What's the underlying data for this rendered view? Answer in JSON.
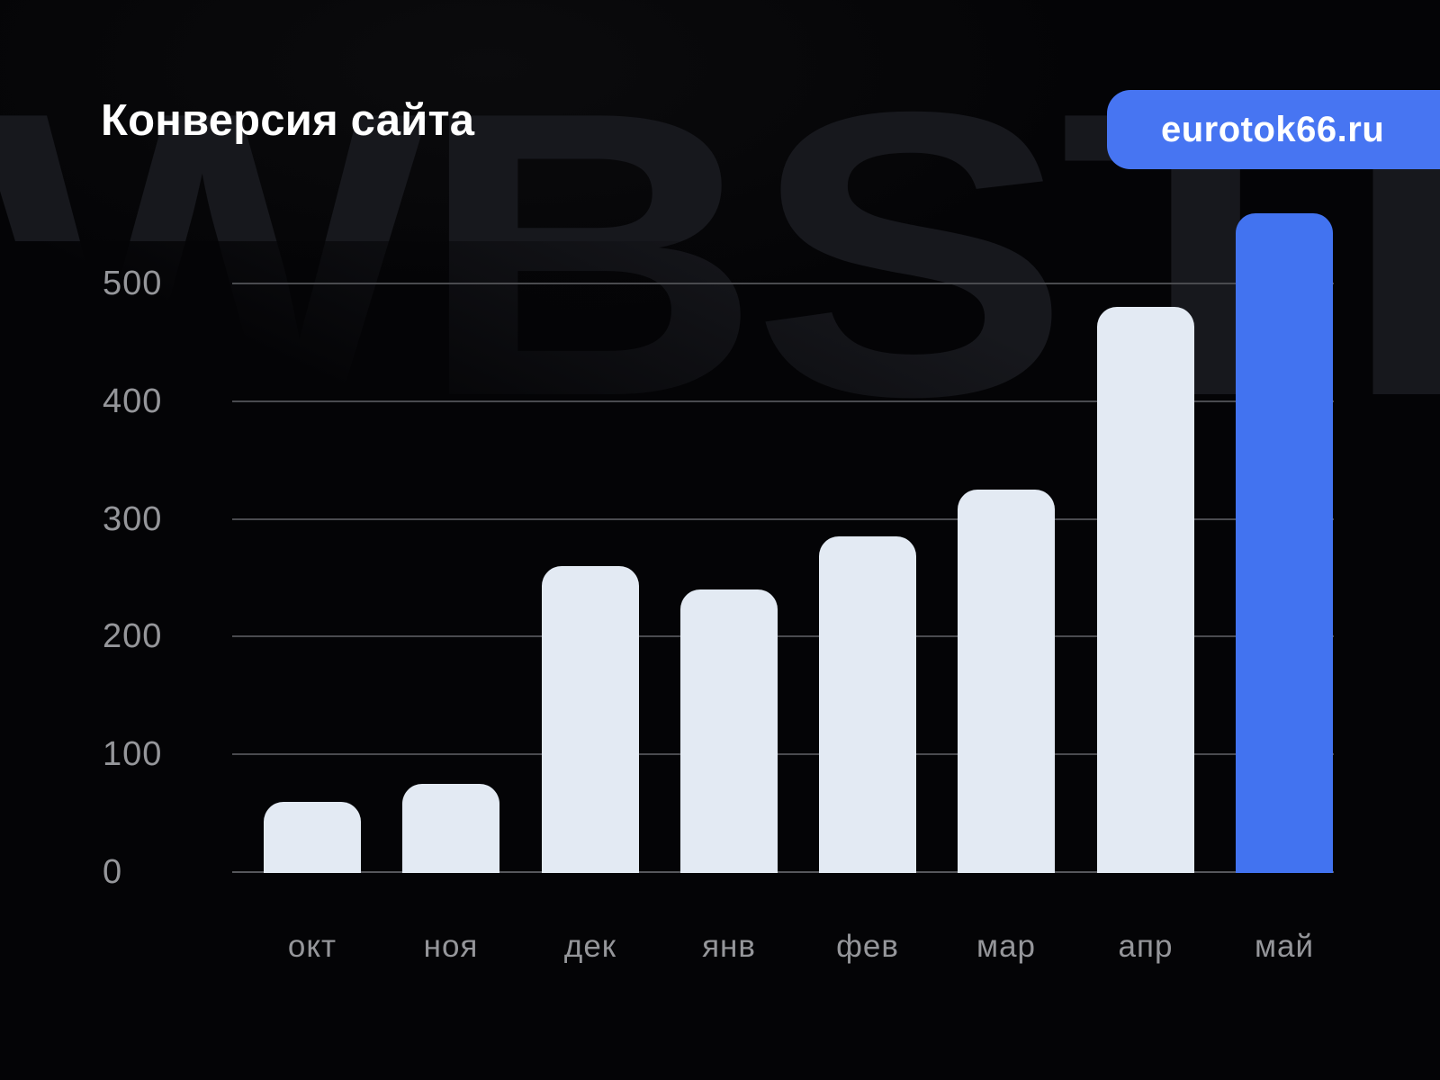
{
  "title": "Конверсия сайта",
  "badge": {
    "label": "eurotok66.ru"
  },
  "watermark_text": "WBSTR",
  "colors": {
    "background": "#040406",
    "accent_blue": "#4273f0",
    "badge_blue": "#4775f2",
    "bar_light": "#e3eaf3",
    "grid_line": "#4a4b4f",
    "axis_line": "#56575b",
    "tick_text": "#95969a",
    "title_text": "#ffffff",
    "watermark": "#17181d"
  },
  "chart_data": {
    "type": "bar",
    "title": "Конверсия сайта",
    "categories": [
      "окт",
      "ноя",
      "дек",
      "янв",
      "фев",
      "мар",
      "апр",
      "май"
    ],
    "values": [
      60,
      75,
      260,
      240,
      285,
      325,
      480,
      560
    ],
    "highlight_index": 7,
    "highlight_category": "май",
    "y_ticks": [
      0,
      100,
      200,
      300,
      400,
      500
    ],
    "ylim": [
      0,
      560
    ],
    "xlabel": "",
    "ylabel": "",
    "grid": "horizontal",
    "legend": "none"
  }
}
